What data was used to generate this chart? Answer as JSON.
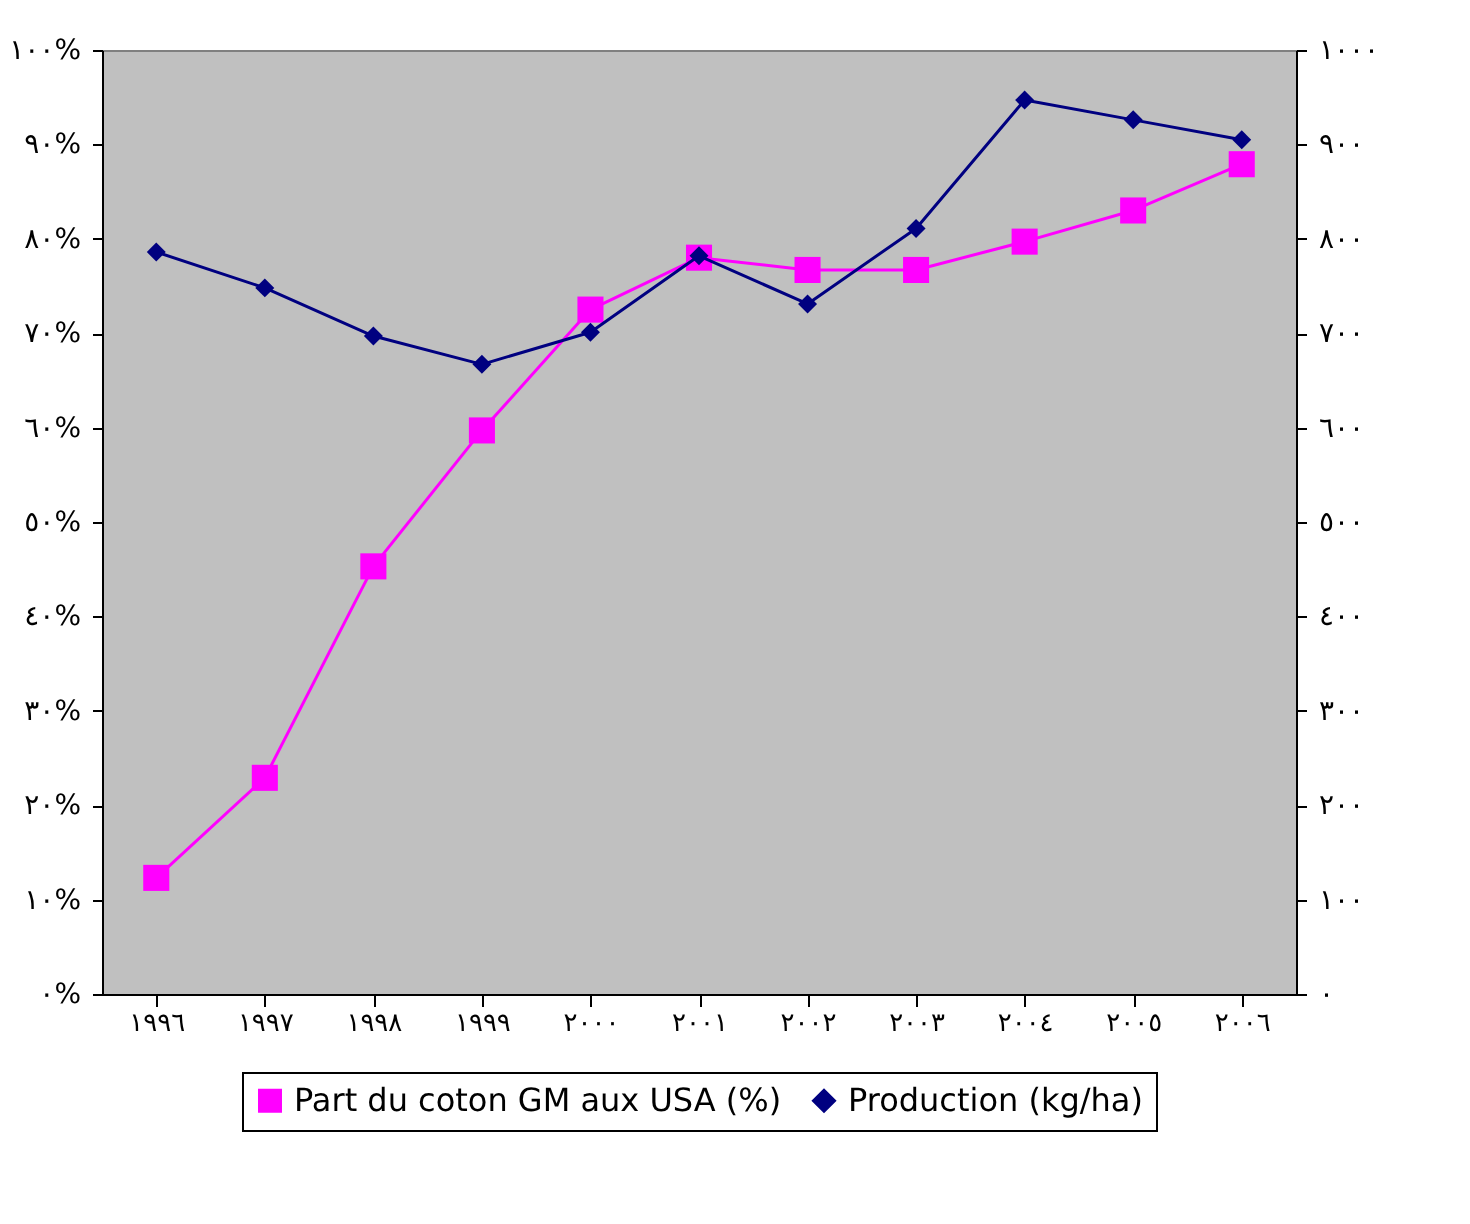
{
  "chart_data": {
    "type": "line",
    "categories": [
      "١٩٩٦",
      "١٩٩٧",
      "١٩٩٨",
      "١٩٩٩",
      "٢٠٠٠",
      "٢٠٠١",
      "٢٠٠٢",
      "٢٠٠٣",
      "٢٠٠٤",
      "٢٠٠٥",
      "٢٠٠٦"
    ],
    "series": [
      {
        "name": "Part du coton GM aux USA (%)",
        "color": "#ff00ff",
        "marker": "square",
        "values": [
          12.3,
          22.9,
          45.3,
          59.7,
          72.5,
          78,
          76.7,
          76.7,
          79.7,
          83,
          87.9
        ]
      },
      {
        "name": "Production (kg/ha)",
        "color": "#000080",
        "marker": "diamond",
        "axis": "y2",
        "values": [
          786,
          748,
          697,
          667,
          701,
          782,
          731,
          811,
          947,
          926,
          905
        ]
      }
    ],
    "ylim": [
      0,
      100
    ],
    "yticks": [
      {
        "value": 0,
        "label": "٠%"
      },
      {
        "value": 10,
        "label": "١٠%"
      },
      {
        "value": 20,
        "label": "٢٠%"
      },
      {
        "value": 30,
        "label": "٣٠%"
      },
      {
        "value": 40,
        "label": "٤٠%"
      },
      {
        "value": 50,
        "label": "٥٠%"
      },
      {
        "value": 60,
        "label": "٦٠%"
      },
      {
        "value": 70,
        "label": "٧٠%"
      },
      {
        "value": 80,
        "label": "٨٠%"
      },
      {
        "value": 90,
        "label": "٩٠%"
      },
      {
        "value": 100,
        "label": "١٠٠%"
      }
    ],
    "y2lim": [
      0,
      1000
    ],
    "y2ticks": [
      {
        "value": 0,
        "label": "٠"
      },
      {
        "value": 100,
        "label": "١٠٠"
      },
      {
        "value": 200,
        "label": "٢٠٠"
      },
      {
        "value": 300,
        "label": "٣٠٠"
      },
      {
        "value": 400,
        "label": "٤٠٠"
      },
      {
        "value": 500,
        "label": "٥٠٠"
      },
      {
        "value": 600,
        "label": "٦٠٠"
      },
      {
        "value": 700,
        "label": "٧٠٠"
      },
      {
        "value": 800,
        "label": "٨٠٠"
      },
      {
        "value": 900,
        "label": "٩٠٠"
      },
      {
        "value": 1000,
        "label": "١٠٠٠"
      }
    ],
    "grid": false,
    "legend": "bottom"
  }
}
